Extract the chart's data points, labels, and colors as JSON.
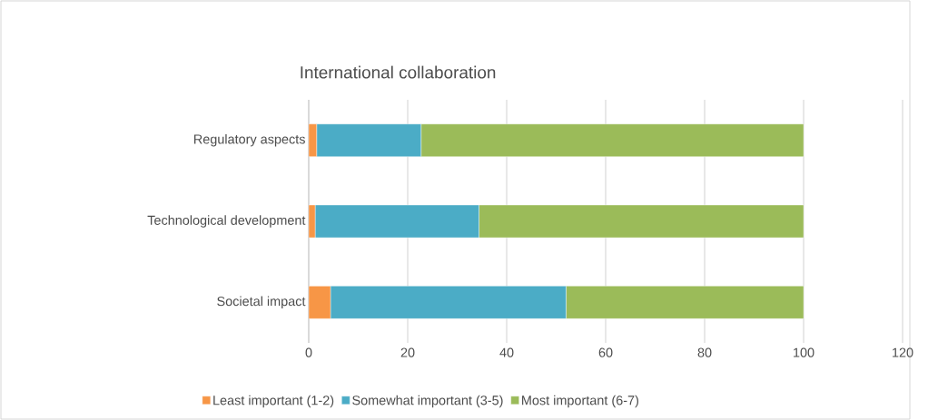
{
  "chart_data": {
    "type": "bar",
    "orientation": "horizontal",
    "stacked": true,
    "title": "International collaboration",
    "categories": [
      "Regulatory aspects",
      "Technological development",
      "Societal impact"
    ],
    "series": [
      {
        "name": "Least important (1-2)",
        "color": "#f79646",
        "values": [
          1.6,
          1.3,
          4.4
        ]
      },
      {
        "name": "Somewhat important (3-5)",
        "color": "#4bacc6",
        "values": [
          21.1,
          33.1,
          47.6
        ]
      },
      {
        "name": "Most important (6-7)",
        "color": "#9bbb59",
        "values": [
          77.3,
          65.6,
          48.0
        ]
      }
    ],
    "xlim": [
      0,
      120
    ],
    "xticks": [
      0,
      20,
      40,
      60,
      80,
      100,
      120
    ],
    "grid": "x",
    "legend": "bottom"
  }
}
